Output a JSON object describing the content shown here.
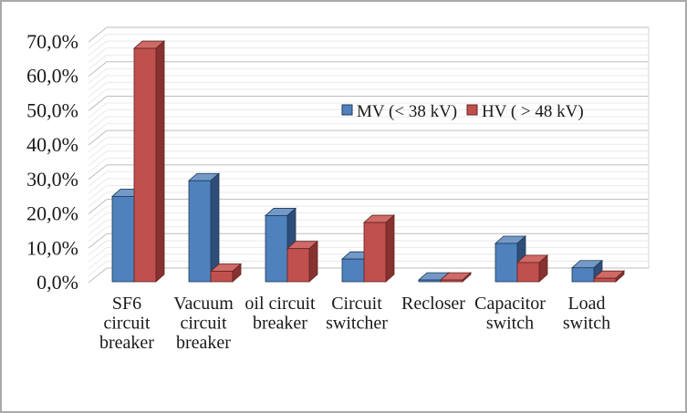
{
  "frame": {
    "border_color": "#a9a9a9",
    "background": "#ffffff"
  },
  "chart_data": {
    "type": "bar",
    "style": "3d-clustered-column",
    "title": "",
    "xlabel": "",
    "ylabel": "",
    "categories": [
      "SF6 circuit breaker",
      "Vacuum circuit breaker",
      "oil circuit breaker",
      "Circuit switcher",
      "Recloser",
      "Capacitor switch",
      "Load switch"
    ],
    "category_label_lines": [
      [
        "SF6",
        "circuit",
        "breaker"
      ],
      [
        "Vacuum",
        "circuit",
        "breaker"
      ],
      [
        "oil circuit",
        "breaker"
      ],
      [
        "Circuit",
        "switcher"
      ],
      [
        "Recloser"
      ],
      [
        "Capacitor",
        "switch"
      ],
      [
        "Load",
        "switch"
      ]
    ],
    "series": [
      {
        "name": "MV (< 38 kV)",
        "values": [
          24.5,
          29,
          19,
          6.5,
          0.5,
          11,
          4
        ],
        "color": "#4F81BD",
        "color_top": "#7499C7",
        "color_side": "#2E4E79",
        "color_edge": "#1D3A57"
      },
      {
        "name": "HV ( > 48 kV)",
        "values": [
          67,
          3,
          9.5,
          17,
          0.5,
          5.5,
          1
        ],
        "color": "#C0504D",
        "color_top": "#CF6A67",
        "color_side": "#873230",
        "color_edge": "#632422"
      }
    ],
    "y_axis": {
      "min": 0,
      "max": 70,
      "major_step": 10,
      "minor_step": 2,
      "tick_labels": [
        "0,0%",
        "10,0%",
        "20,0%",
        "30,0%",
        "40,0%",
        "50,0%",
        "60,0%",
        "70,0%"
      ],
      "format": "percent-comma-decimal"
    },
    "ylim": [
      0,
      70
    ],
    "legend": {
      "position": "inside-upper-right"
    },
    "grid": {
      "major_color": "#bdbdbd",
      "minor_color": "#e9e9e9",
      "wall_edge_color": "#d6d6d6",
      "minor_on": true
    },
    "text_color": "#1a1a1a"
  }
}
